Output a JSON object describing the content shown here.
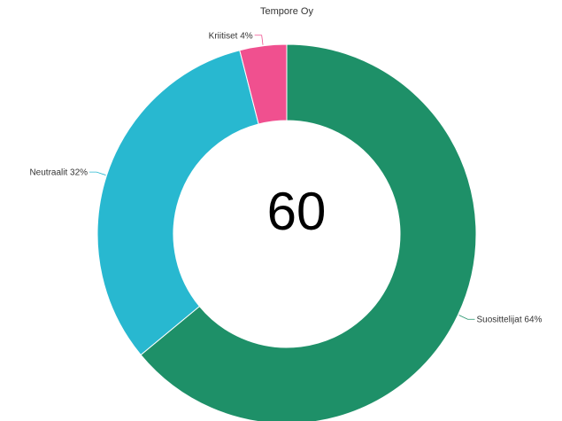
{
  "chart_data": {
    "type": "pie",
    "variant": "donut",
    "title": "Tempore Oy",
    "center_value": "60",
    "categories": [
      "Suosittelijat",
      "Neutraalit",
      "Kriitiset"
    ],
    "values": [
      64,
      32,
      4
    ],
    "labels": [
      "Suosittelijat 64%",
      "Neutraalit 32%",
      "Kriitiset 4%"
    ],
    "colors": [
      "#1e9068",
      "#28b8d0",
      "#f0508f"
    ],
    "start_angle_deg": 0,
    "direction": "clockwise",
    "legend": "none"
  }
}
